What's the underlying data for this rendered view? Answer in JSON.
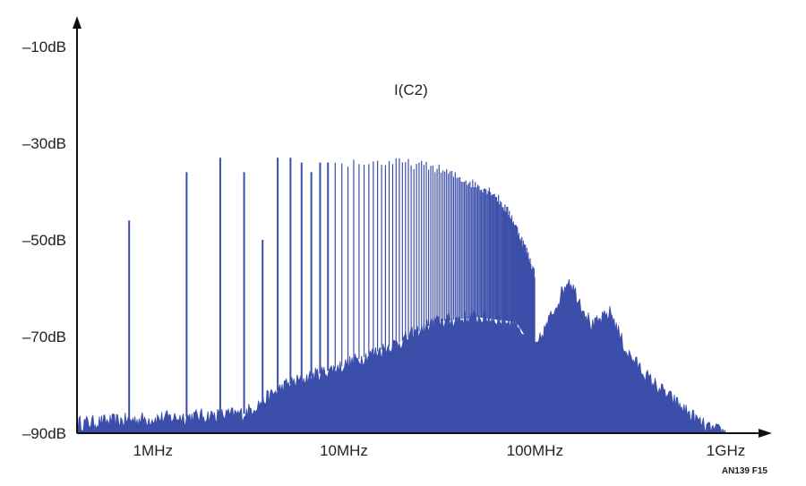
{
  "chart_data": {
    "type": "line",
    "title": "I(C2)",
    "figure_id": "AN139 F15",
    "xlabel": "",
    "ylabel": "",
    "x_scale": "log",
    "xlim_hz": [
      400000,
      1500000000
    ],
    "ylim_db": [
      -90,
      -10
    ],
    "grid": false,
    "legend": "none",
    "color": "#3b4eaa",
    "y_ticks": [
      {
        "value": -10,
        "label": "–10dB"
      },
      {
        "value": -30,
        "label": "–30dB"
      },
      {
        "value": -50,
        "label": "–50dB"
      },
      {
        "value": -70,
        "label": "–70dB"
      },
      {
        "value": -90,
        "label": "–90dB"
      }
    ],
    "x_ticks": [
      {
        "value": 1000000,
        "label": "1MHz"
      },
      {
        "value": 10000000,
        "label": "10MHz"
      },
      {
        "value": 100000000,
        "label": "100MHz"
      },
      {
        "value": 1000000000,
        "label": "1GHz"
      }
    ],
    "series": [
      {
        "harmonic_peaks": {
          "x_hz": [
            750000,
            1500000,
            2250000,
            3000000,
            3750000,
            4500000,
            5250000,
            6000000,
            6750000,
            7500000,
            9000000,
            12000000,
            15000000,
            20000000,
            30000000,
            45000000,
            60000000,
            75000000,
            90000000,
            100000000
          ],
          "y_db": [
            -46,
            -36,
            -33,
            -36,
            -50,
            -33,
            -33,
            -34,
            -36,
            -34,
            -34,
            -34,
            -34,
            -34,
            -35,
            -38,
            -40,
            -45,
            -52,
            -57
          ]
        },
        "noise_floor": {
          "x_hz": [
            400000,
            1000000,
            3000000,
            5000000,
            10000000,
            20000000,
            30000000,
            50000000,
            80000000,
            100000000,
            150000000,
            200000000,
            250000000,
            300000000,
            400000000,
            600000000,
            800000000,
            1000000000
          ],
          "y_db": [
            -88,
            -87,
            -86,
            -80,
            -76,
            -71,
            -67,
            -66,
            -67,
            -73,
            -58,
            -68,
            -65,
            -73,
            -79,
            -85,
            -89,
            -90
          ]
        }
      }
    ]
  }
}
